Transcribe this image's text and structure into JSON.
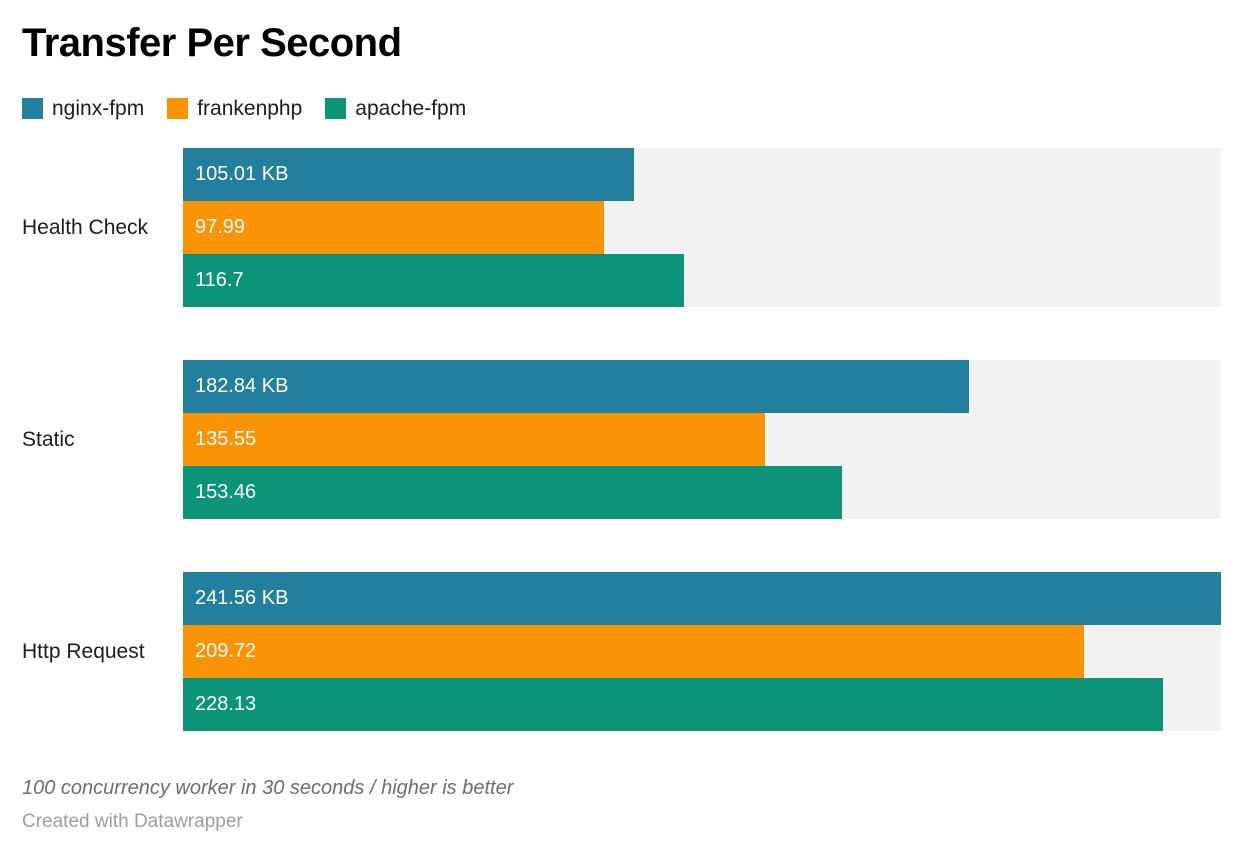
{
  "title": "Transfer Per Second",
  "legend": {
    "items": [
      {
        "label": "nginx-fpm",
        "color": "#227f9e"
      },
      {
        "label": "frankenphp",
        "color": "#f89406"
      },
      {
        "label": "apache-fpm",
        "color": "#0c9479"
      }
    ]
  },
  "chart_data": {
    "type": "bar",
    "orientation": "horizontal",
    "title": "Transfer Per Second",
    "unit": "KB",
    "xlim": [
      0,
      241.56
    ],
    "grid": false,
    "legend_position": "top",
    "track_color": "#f2f2f2",
    "categories": [
      "Health Check",
      "Static",
      "Http Request"
    ],
    "series": [
      {
        "name": "nginx-fpm",
        "color": "#227f9e",
        "values": [
          105.01,
          182.84,
          241.56
        ],
        "value_labels": [
          "105.01 KB",
          "182.84 KB",
          "241.56 KB"
        ]
      },
      {
        "name": "frankenphp",
        "color": "#f89406",
        "values": [
          97.99,
          135.55,
          209.72
        ],
        "value_labels": [
          "97.99",
          "135.55",
          "209.72"
        ]
      },
      {
        "name": "apache-fpm",
        "color": "#0c9479",
        "values": [
          116.7,
          153.46,
          228.13
        ],
        "value_labels": [
          "116.7",
          "153.46",
          "228.13"
        ]
      }
    ]
  },
  "footer": {
    "note": "100 concurrency worker in 30 seconds / higher is better",
    "attribution": "Created with Datawrapper"
  }
}
